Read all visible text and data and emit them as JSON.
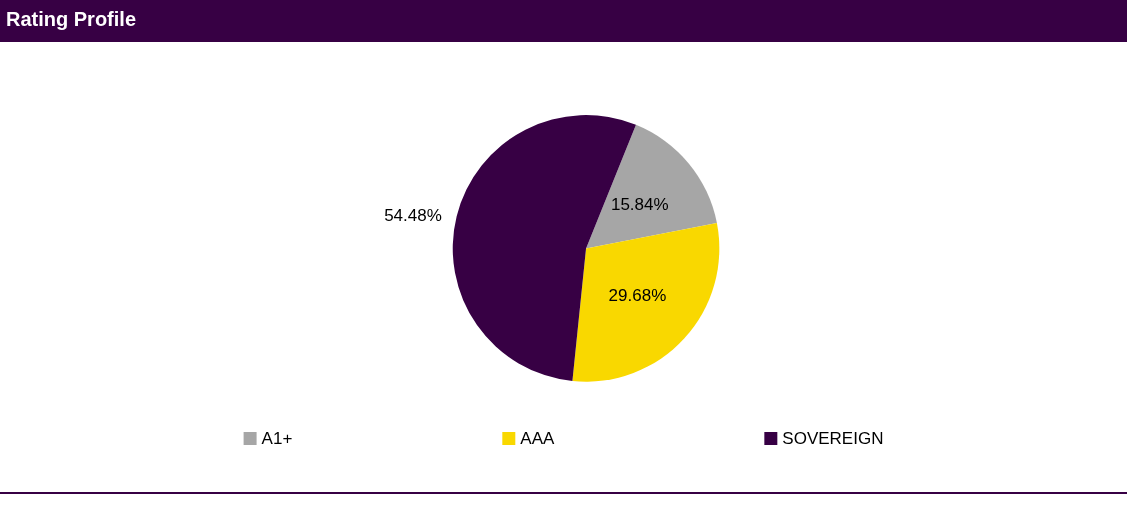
{
  "chart_data": {
    "type": "pie",
    "title": "Rating Profile",
    "categories": [
      "A1+",
      "AAA",
      "SOVEREIGN"
    ],
    "values": [
      15.84,
      29.68,
      54.48
    ],
    "colors": [
      "#a6a6a6",
      "#f9d800",
      "#370044"
    ],
    "value_labels": [
      "15.84%",
      "29.68%",
      "54.48%"
    ],
    "legend": "bottom"
  }
}
